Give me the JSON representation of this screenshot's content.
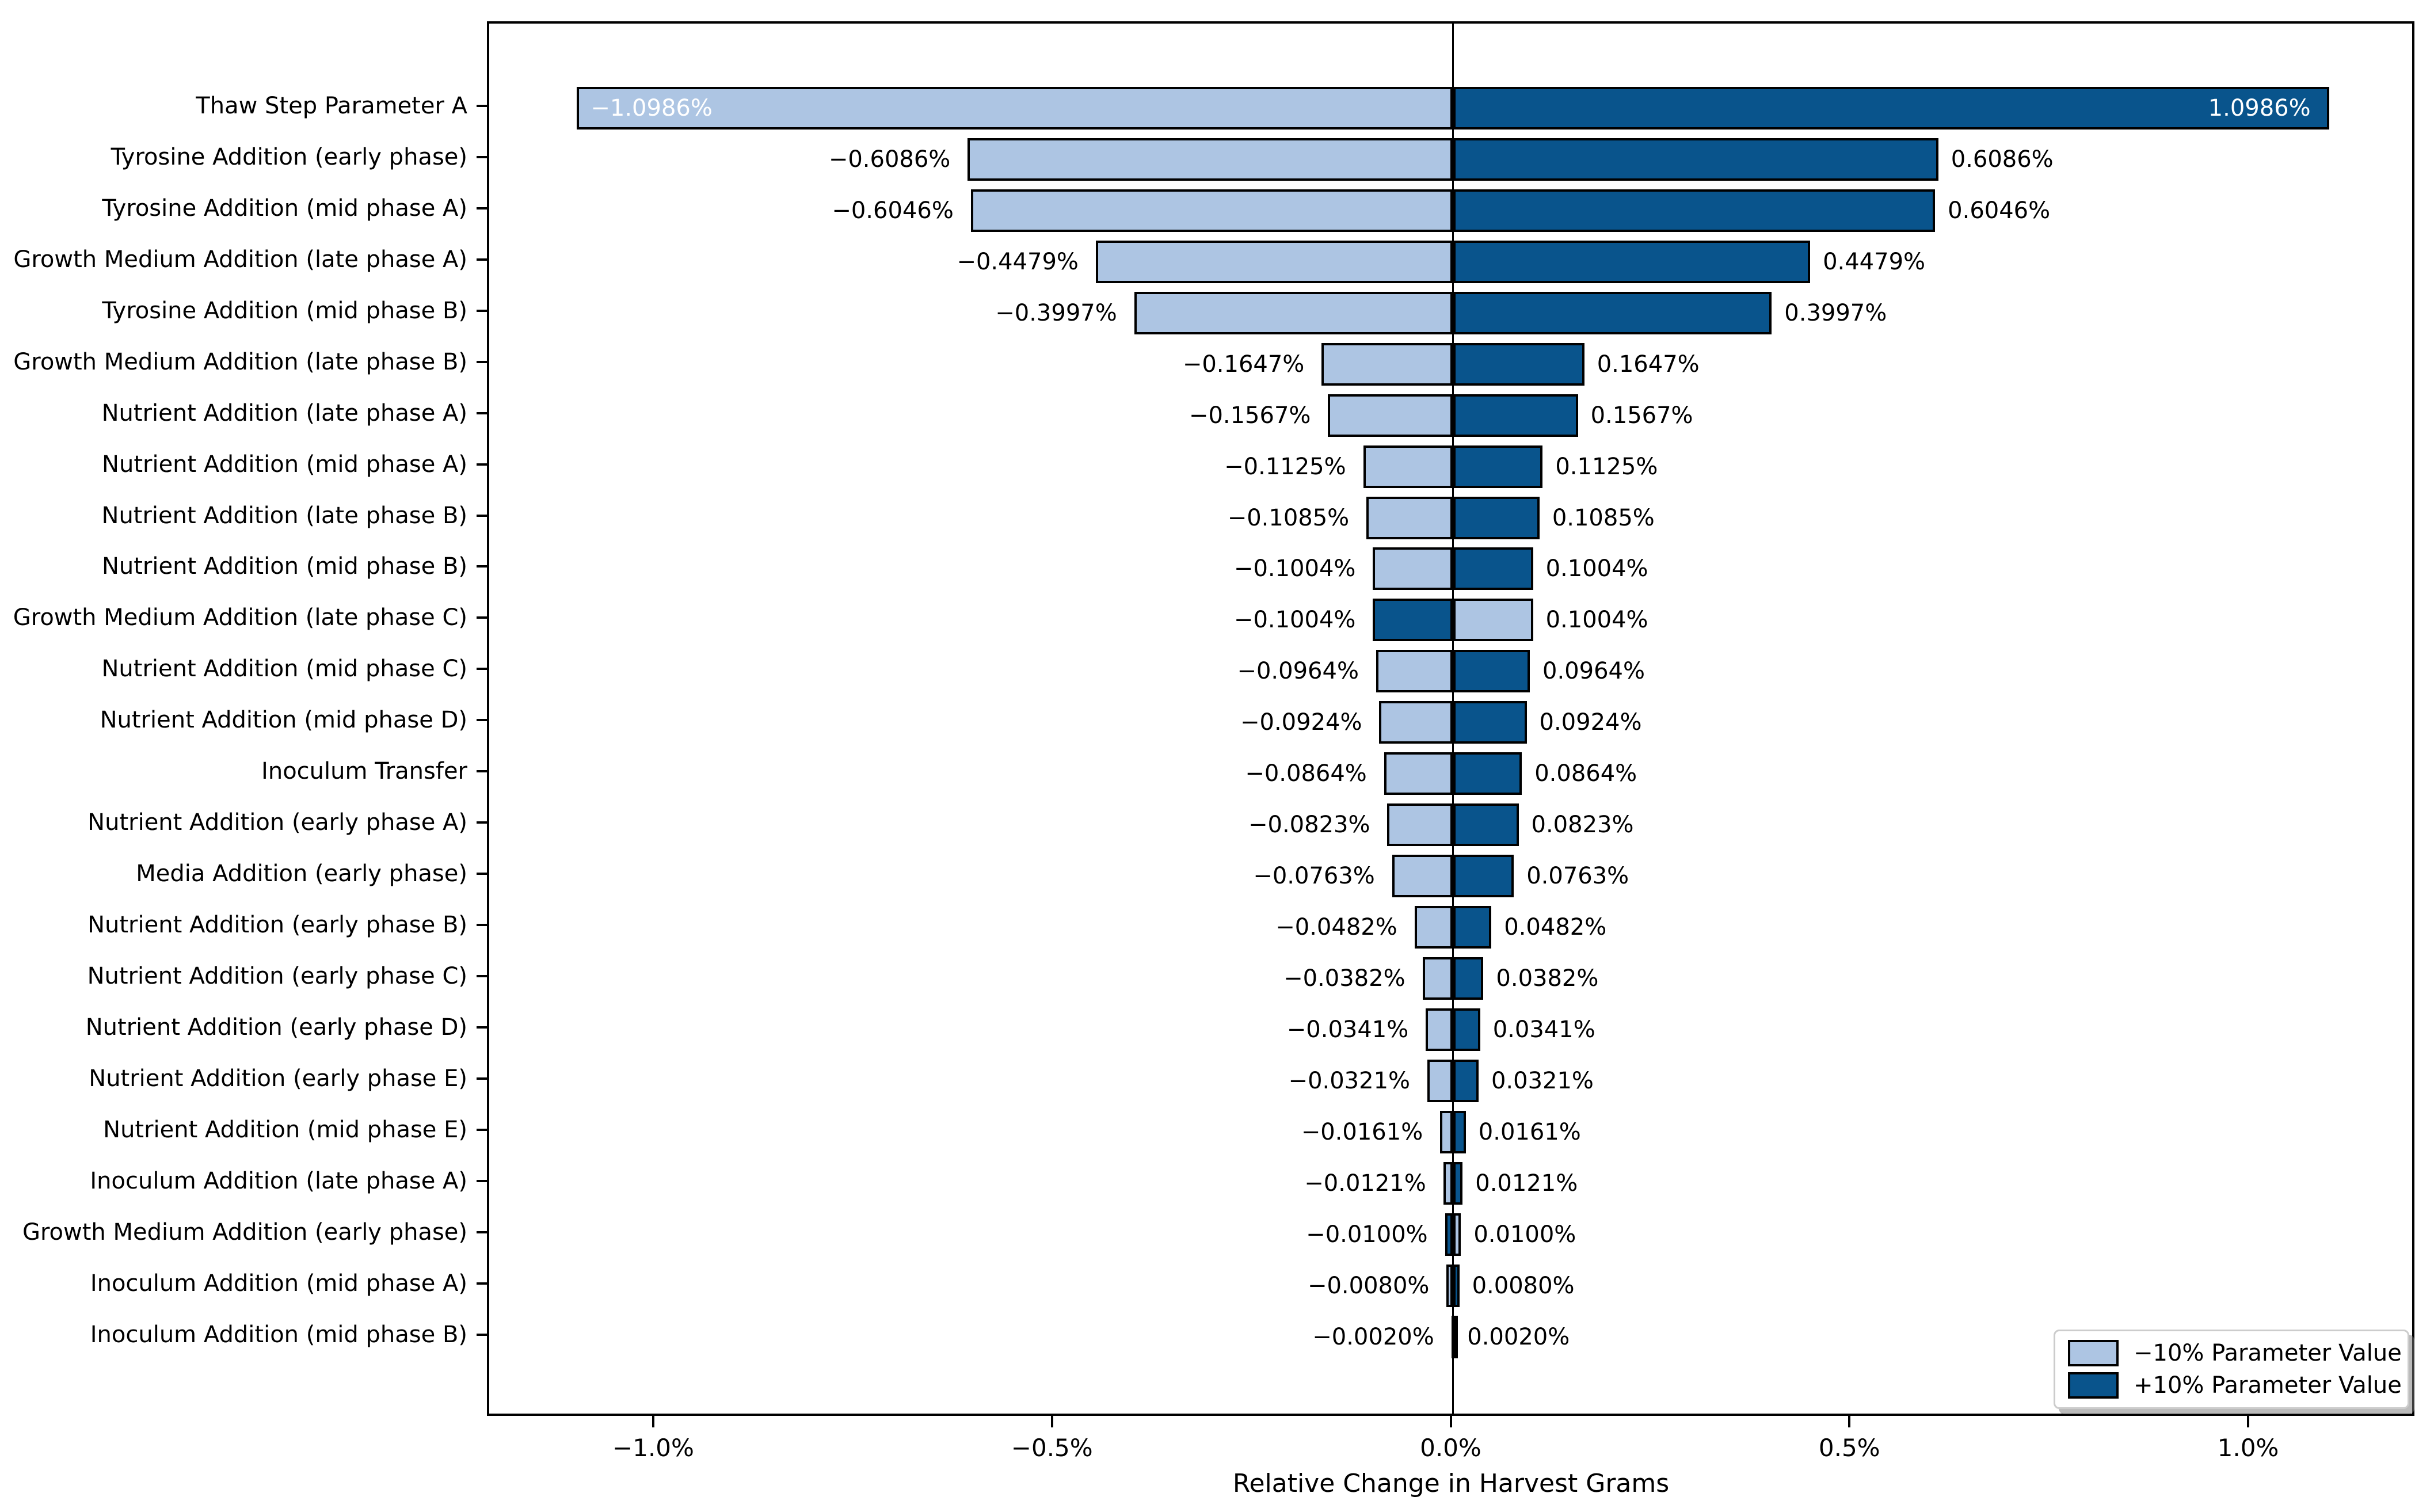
{
  "chart_data": {
    "type": "bar",
    "variant": "horizontal-tornado",
    "title": "",
    "xlabel": "Relative Change in Harvest Grams",
    "xlim": [
      -1.2085,
      1.2085
    ],
    "grid": false,
    "x_ticks": [
      {
        "value": -1.0,
        "label": "−1.0%"
      },
      {
        "value": -0.5,
        "label": "−0.5%"
      },
      {
        "value": 0.0,
        "label": "0.0%"
      },
      {
        "value": 0.5,
        "label": "0.5%"
      },
      {
        "value": 1.0,
        "label": "1.0%"
      }
    ],
    "legend": {
      "position": "lower-right",
      "items": [
        {
          "label": "−10% Parameter Value",
          "color": "#adc5e3"
        },
        {
          "label": "+10% Parameter Value",
          "color": "#09548c"
        }
      ]
    },
    "style": {
      "bar_fill_minus10": "#adc5e3",
      "bar_fill_plus10": "#09548c",
      "bar_border": "#000000",
      "inside_label_color": "#ffffff",
      "outside_label_color": "#000000"
    },
    "rows": [
      {
        "label": "Thaw Step Parameter A",
        "minus10_pct": -1.0986,
        "plus10_pct": 1.0986,
        "neg_label": "−1.0986%",
        "pos_label": "1.0986%",
        "labels_inside": true
      },
      {
        "label": "Tyrosine Addition (early phase)",
        "minus10_pct": -0.6086,
        "plus10_pct": 0.6086,
        "neg_label": "−0.6086%",
        "pos_label": "0.6086%",
        "labels_inside": false
      },
      {
        "label": "Tyrosine Addition (mid phase A)",
        "minus10_pct": -0.6046,
        "plus10_pct": 0.6046,
        "neg_label": "−0.6046%",
        "pos_label": "0.6046%",
        "labels_inside": false
      },
      {
        "label": "Growth Medium Addition (late phase A)",
        "minus10_pct": -0.4479,
        "plus10_pct": 0.4479,
        "neg_label": "−0.4479%",
        "pos_label": "0.4479%",
        "labels_inside": false
      },
      {
        "label": "Tyrosine Addition (mid phase B)",
        "minus10_pct": -0.3997,
        "plus10_pct": 0.3997,
        "neg_label": "−0.3997%",
        "pos_label": "0.3997%",
        "labels_inside": false
      },
      {
        "label": "Growth Medium Addition (late phase B)",
        "minus10_pct": -0.1647,
        "plus10_pct": 0.1647,
        "neg_label": "−0.1647%",
        "pos_label": "0.1647%",
        "labels_inside": false
      },
      {
        "label": "Nutrient Addition (late phase A)",
        "minus10_pct": -0.1567,
        "plus10_pct": 0.1567,
        "neg_label": "−0.1567%",
        "pos_label": "0.1567%",
        "labels_inside": false
      },
      {
        "label": "Nutrient Addition (mid phase A)",
        "minus10_pct": -0.1125,
        "plus10_pct": 0.1125,
        "neg_label": "−0.1125%",
        "pos_label": "0.1125%",
        "labels_inside": false
      },
      {
        "label": "Nutrient Addition (late phase B)",
        "minus10_pct": -0.1085,
        "plus10_pct": 0.1085,
        "neg_label": "−0.1085%",
        "pos_label": "0.1085%",
        "labels_inside": false
      },
      {
        "label": "Nutrient Addition (mid phase B)",
        "minus10_pct": -0.1004,
        "plus10_pct": 0.1004,
        "neg_label": "−0.1004%",
        "pos_label": "0.1004%",
        "labels_inside": false
      },
      {
        "label": "Growth Medium Addition (late phase C)",
        "minus10_pct": 0.1004,
        "plus10_pct": -0.1004,
        "neg_label": "−0.1004%",
        "pos_label": "0.1004%",
        "labels_inside": false
      },
      {
        "label": "Nutrient Addition (mid phase C)",
        "minus10_pct": -0.0964,
        "plus10_pct": 0.0964,
        "neg_label": "−0.0964%",
        "pos_label": "0.0964%",
        "labels_inside": false
      },
      {
        "label": "Nutrient Addition (mid phase D)",
        "minus10_pct": -0.0924,
        "plus10_pct": 0.0924,
        "neg_label": "−0.0924%",
        "pos_label": "0.0924%",
        "labels_inside": false
      },
      {
        "label": "Inoculum Transfer",
        "minus10_pct": -0.0864,
        "plus10_pct": 0.0864,
        "neg_label": "−0.0864%",
        "pos_label": "0.0864%",
        "labels_inside": false
      },
      {
        "label": "Nutrient Addition (early phase A)",
        "minus10_pct": -0.0823,
        "plus10_pct": 0.0823,
        "neg_label": "−0.0823%",
        "pos_label": "0.0823%",
        "labels_inside": false
      },
      {
        "label": "Media Addition (early phase)",
        "minus10_pct": -0.0763,
        "plus10_pct": 0.0763,
        "neg_label": "−0.0763%",
        "pos_label": "0.0763%",
        "labels_inside": false
      },
      {
        "label": "Nutrient Addition (early phase B)",
        "minus10_pct": -0.0482,
        "plus10_pct": 0.0482,
        "neg_label": "−0.0482%",
        "pos_label": "0.0482%",
        "labels_inside": false
      },
      {
        "label": "Nutrient Addition (early phase C)",
        "minus10_pct": -0.0382,
        "plus10_pct": 0.0382,
        "neg_label": "−0.0382%",
        "pos_label": "0.0382%",
        "labels_inside": false
      },
      {
        "label": "Nutrient Addition (early phase D)",
        "minus10_pct": -0.0341,
        "plus10_pct": 0.0341,
        "neg_label": "−0.0341%",
        "pos_label": "0.0341%",
        "labels_inside": false
      },
      {
        "label": "Nutrient Addition (early phase E)",
        "minus10_pct": -0.0321,
        "plus10_pct": 0.0321,
        "neg_label": "−0.0321%",
        "pos_label": "0.0321%",
        "labels_inside": false
      },
      {
        "label": "Nutrient Addition (mid phase E)",
        "minus10_pct": -0.0161,
        "plus10_pct": 0.0161,
        "neg_label": "−0.0161%",
        "pos_label": "0.0161%",
        "labels_inside": false
      },
      {
        "label": "Inoculum Addition (late phase A)",
        "minus10_pct": -0.0121,
        "plus10_pct": 0.0121,
        "neg_label": "−0.0121%",
        "pos_label": "0.0121%",
        "labels_inside": false
      },
      {
        "label": "Growth Medium Addition (early phase)",
        "minus10_pct": 0.01,
        "plus10_pct": -0.01,
        "neg_label": "−0.0100%",
        "pos_label": "0.0100%",
        "labels_inside": false
      },
      {
        "label": "Inoculum Addition (mid phase A)",
        "minus10_pct": -0.008,
        "plus10_pct": 0.008,
        "neg_label": "−0.0080%",
        "pos_label": "0.0080%",
        "labels_inside": false
      },
      {
        "label": "Inoculum Addition (mid phase B)",
        "minus10_pct": -0.002,
        "plus10_pct": 0.002,
        "neg_label": "−0.0020%",
        "pos_label": "0.0020%",
        "labels_inside": false
      }
    ]
  }
}
